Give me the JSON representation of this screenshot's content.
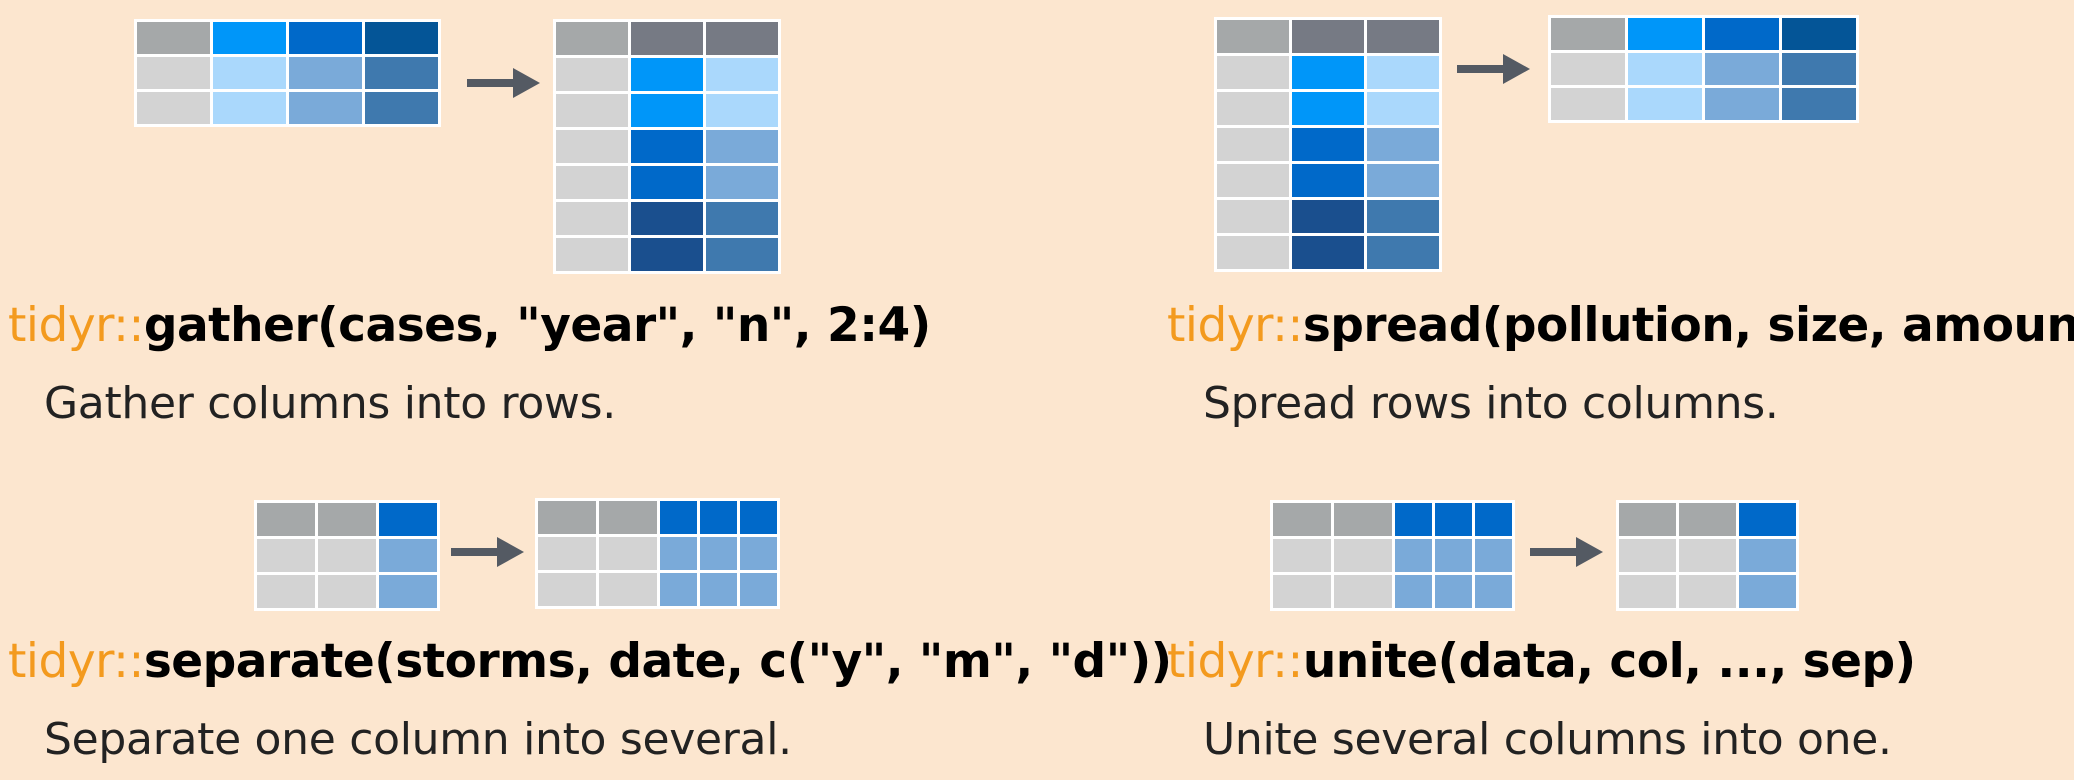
{
  "colors": {
    "background": "#fce6cf",
    "package_prefix": "#f39a1e",
    "function_call": "#000000",
    "description": "#222222",
    "arrow": "#545a63",
    "cell_header_gray": "#a5a8a9",
    "cell_dark_gray": "#767a84",
    "cell_light_gray": "#d3d3d3"
  },
  "panels": [
    {
      "id": "gather",
      "package": "tidyr::",
      "call": "gather(cases, \"year\", \"n\", 2:4)",
      "description": "Gather columns into rows."
    },
    {
      "id": "spread",
      "package": "tidyr::",
      "call": "spread(pollution, size, amount)",
      "description": "Spread rows into columns."
    },
    {
      "id": "separate",
      "package": "tidyr::",
      "call": "separate(storms, date, c(\"y\", \"m\", \"d\"))",
      "description": "Separate one column into several."
    },
    {
      "id": "unite",
      "package": "tidyr::",
      "call": "unite(data, col, ..., sep)",
      "description": "Unite several columns into one."
    }
  ],
  "tables": [
    {
      "name": "gather-input-table",
      "cells": [
        [
          "#a5a8a9",
          "#0096f9",
          "#0069c9",
          "#045597"
        ],
        [
          "#d3d3d3",
          "#aad8fc",
          "#7aaad9",
          "#3f79ae"
        ],
        [
          "#d3d3d3",
          "#aad8fc",
          "#7aaad9",
          "#3f79ae"
        ]
      ]
    },
    {
      "name": "gather-output-table",
      "cells": [
        [
          "#a5a8a9",
          "#767a84",
          "#767a84"
        ],
        [
          "#d3d3d3",
          "#0096f9",
          "#aad8fc"
        ],
        [
          "#d3d3d3",
          "#0096f9",
          "#aad8fc"
        ],
        [
          "#d3d3d3",
          "#0069c9",
          "#7aaad9"
        ],
        [
          "#d3d3d3",
          "#0069c9",
          "#7aaad9"
        ],
        [
          "#d3d3d3",
          "#1a4f8e",
          "#3f79ae"
        ],
        [
          "#d3d3d3",
          "#1a4f8e",
          "#3f79ae"
        ]
      ]
    },
    {
      "name": "spread-input-table",
      "cells": [
        [
          "#a5a8a9",
          "#767a84",
          "#767a84"
        ],
        [
          "#d3d3d3",
          "#0096f9",
          "#aad8fc"
        ],
        [
          "#d3d3d3",
          "#0096f9",
          "#aad8fc"
        ],
        [
          "#d3d3d3",
          "#0069c9",
          "#7aaad9"
        ],
        [
          "#d3d3d3",
          "#0069c9",
          "#7aaad9"
        ],
        [
          "#d3d3d3",
          "#1a4f8e",
          "#3f79ae"
        ],
        [
          "#d3d3d3",
          "#1a4f8e",
          "#3f79ae"
        ]
      ]
    },
    {
      "name": "spread-output-table",
      "cells": [
        [
          "#a5a8a9",
          "#0096f9",
          "#0069c9",
          "#045597"
        ],
        [
          "#d3d3d3",
          "#aad8fc",
          "#7aaad9",
          "#3f79ae"
        ],
        [
          "#d3d3d3",
          "#aad8fc",
          "#7aaad9",
          "#3f79ae"
        ]
      ]
    },
    {
      "name": "separate-input-table",
      "cells": [
        [
          "#a5a8a9",
          "#a5a8a9",
          "#0069c9"
        ],
        [
          "#d3d3d3",
          "#d3d3d3",
          "#7aaad9"
        ],
        [
          "#d3d3d3",
          "#d3d3d3",
          "#7aaad9"
        ]
      ]
    },
    {
      "name": "separate-output-table",
      "cells": [
        [
          "#a5a8a9",
          "#a5a8a9",
          "#0069c9",
          "#0069c9",
          "#0069c9"
        ],
        [
          "#d3d3d3",
          "#d3d3d3",
          "#7aaad9",
          "#7aaad9",
          "#7aaad9"
        ],
        [
          "#d3d3d3",
          "#d3d3d3",
          "#7aaad9",
          "#7aaad9",
          "#7aaad9"
        ]
      ]
    },
    {
      "name": "unite-input-table",
      "cells": [
        [
          "#a5a8a9",
          "#a5a8a9",
          "#0069c9",
          "#0069c9",
          "#0069c9"
        ],
        [
          "#d3d3d3",
          "#d3d3d3",
          "#7aaad9",
          "#7aaad9",
          "#7aaad9"
        ],
        [
          "#d3d3d3",
          "#d3d3d3",
          "#7aaad9",
          "#7aaad9",
          "#7aaad9"
        ]
      ]
    },
    {
      "name": "unite-output-table",
      "cells": [
        [
          "#a5a8a9",
          "#a5a8a9",
          "#0069c9"
        ],
        [
          "#d3d3d3",
          "#d3d3d3",
          "#7aaad9"
        ],
        [
          "#d3d3d3",
          "#d3d3d3",
          "#7aaad9"
        ]
      ]
    }
  ]
}
